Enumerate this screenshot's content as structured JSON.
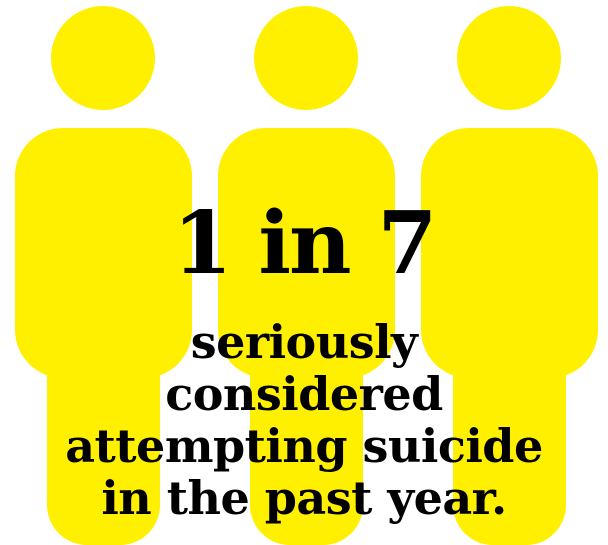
{
  "colors": {
    "figure": "#FFF000",
    "text": "#000000",
    "background": "#FFFFFF"
  },
  "icon": "person-silhouette-icon",
  "stat": {
    "headline": "1 in 7",
    "caption_lines": [
      "seriously",
      "considered",
      "attempting suicide",
      "in the past year."
    ]
  }
}
